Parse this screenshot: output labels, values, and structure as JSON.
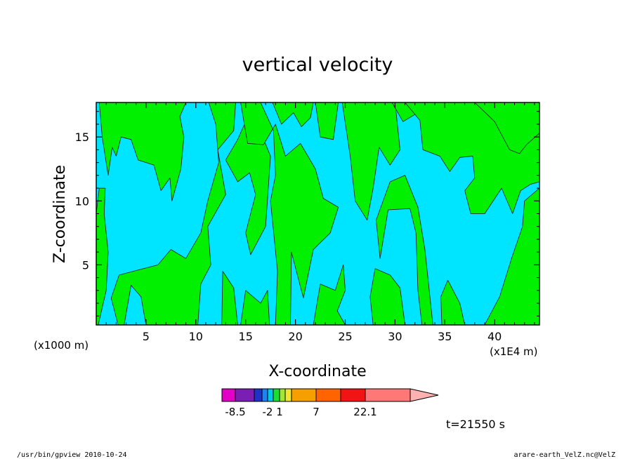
{
  "chart_data": {
    "type": "heatmap",
    "title": "vertical velocity",
    "xlabel": "X-coordinate",
    "ylabel": "Z-coordinate",
    "x_unit_left": "(x1000 m)",
    "x_unit_right": "(x1E4 m)",
    "xlim": [
      0,
      44.5
    ],
    "ylim": [
      0.3,
      17.7
    ],
    "x_ticks": [
      5,
      10,
      15,
      20,
      25,
      30,
      35,
      40
    ],
    "y_ticks": [
      5,
      10,
      15
    ],
    "grid": false,
    "fill_colors": {
      "negative": "#00e5ff",
      "positive": "#00f000"
    },
    "positive_regions": [
      [
        [
          0.2,
          0.3
        ],
        [
          1.0,
          3.0
        ],
        [
          1.2,
          6.0
        ],
        [
          0.8,
          9.0
        ],
        [
          0.9,
          11.0
        ],
        [
          0.3,
          11.0
        ],
        [
          0.0,
          9.0
        ],
        [
          0.0,
          0.3
        ]
      ],
      [
        [
          0.3,
          17.7
        ],
        [
          0.6,
          15.0
        ],
        [
          1.2,
          12.0
        ],
        [
          1.6,
          14.2
        ],
        [
          2.0,
          13.5
        ],
        [
          2.5,
          15.0
        ],
        [
          3.5,
          14.8
        ],
        [
          4.2,
          13.2
        ],
        [
          5.8,
          12.8
        ],
        [
          6.5,
          10.8
        ],
        [
          7.4,
          11.8
        ],
        [
          7.6,
          10.0
        ],
        [
          8.5,
          12.5
        ],
        [
          8.8,
          15.0
        ],
        [
          8.4,
          16.6
        ],
        [
          9.0,
          17.7
        ]
      ],
      [
        [
          11.3,
          17.7
        ],
        [
          12.0,
          16.0
        ],
        [
          12.3,
          13.0
        ],
        [
          11.2,
          10.0
        ],
        [
          10.5,
          7.5
        ],
        [
          9.0,
          5.5
        ],
        [
          7.5,
          6.2
        ],
        [
          6.2,
          5.0
        ],
        [
          4.2,
          4.6
        ],
        [
          2.3,
          4.2
        ],
        [
          1.5,
          2.4
        ],
        [
          2.2,
          0.3
        ],
        [
          2.8,
          0.3
        ],
        [
          3.5,
          3.4
        ],
        [
          4.5,
          2.5
        ],
        [
          5.0,
          0.3
        ],
        [
          10.2,
          0.3
        ],
        [
          10.5,
          3.5
        ],
        [
          11.5,
          5.0
        ],
        [
          11.2,
          8.0
        ],
        [
          13.0,
          10.5
        ],
        [
          12.2,
          14.0
        ],
        [
          13.8,
          15.5
        ],
        [
          14.0,
          17.7
        ]
      ],
      [
        [
          12.6,
          0.3
        ],
        [
          12.7,
          4.5
        ],
        [
          13.8,
          3.2
        ],
        [
          14.2,
          0.3
        ]
      ],
      [
        [
          14.5,
          0.3
        ],
        [
          15.0,
          3.0
        ],
        [
          16.5,
          2.0
        ],
        [
          17.2,
          3.0
        ],
        [
          17.4,
          0.3
        ]
      ],
      [
        [
          13.0,
          13.2
        ],
        [
          14.2,
          11.5
        ],
        [
          15.4,
          12.2
        ],
        [
          16.0,
          10.5
        ],
        [
          15.0,
          7.5
        ],
        [
          15.5,
          5.8
        ],
        [
          17.0,
          8.0
        ],
        [
          17.5,
          13.5
        ],
        [
          16.5,
          15.4
        ],
        [
          15.0,
          16.2
        ],
        [
          14.2,
          14.8
        ]
      ],
      [
        [
          14.5,
          17.7
        ],
        [
          15.2,
          14.5
        ],
        [
          16.8,
          14.4
        ],
        [
          18.0,
          16.0
        ],
        [
          19.0,
          13.5
        ],
        [
          20.5,
          14.5
        ],
        [
          22.0,
          12.5
        ],
        [
          22.8,
          10.2
        ],
        [
          24.3,
          9.5
        ],
        [
          23.5,
          7.5
        ],
        [
          21.8,
          6.2
        ],
        [
          20.8,
          2.4
        ],
        [
          19.6,
          6.0
        ],
        [
          19.5,
          0.3
        ],
        [
          18.0,
          0.3
        ],
        [
          18.2,
          4.5
        ],
        [
          17.5,
          10.0
        ],
        [
          18.0,
          12.0
        ],
        [
          17.8,
          15.5
        ],
        [
          16.5,
          17.7
        ]
      ],
      [
        [
          17.7,
          17.7
        ],
        [
          18.6,
          16.0
        ],
        [
          19.8,
          16.9
        ],
        [
          20.6,
          15.8
        ],
        [
          21.5,
          16.5
        ],
        [
          21.8,
          17.7
        ]
      ],
      [
        [
          22.0,
          17.7
        ],
        [
          22.5,
          15.0
        ],
        [
          23.8,
          14.8
        ],
        [
          24.3,
          17.7
        ]
      ],
      [
        [
          21.8,
          0.3
        ],
        [
          22.5,
          3.5
        ],
        [
          24.0,
          3.0
        ],
        [
          24.8,
          5.0
        ],
        [
          25.0,
          3.0
        ],
        [
          24.2,
          1.4
        ],
        [
          25.0,
          0.3
        ]
      ],
      [
        [
          24.7,
          17.7
        ],
        [
          25.5,
          13.5
        ],
        [
          26.0,
          10.0
        ],
        [
          27.2,
          8.5
        ],
        [
          27.8,
          11.0
        ],
        [
          28.4,
          14.2
        ],
        [
          29.5,
          12.8
        ],
        [
          30.5,
          14.0
        ],
        [
          30.0,
          17.7
        ]
      ],
      [
        [
          27.8,
          0.3
        ],
        [
          27.5,
          2.5
        ],
        [
          28.0,
          4.7
        ],
        [
          29.5,
          4.2
        ],
        [
          30.5,
          3.2
        ],
        [
          31.0,
          0.3
        ]
      ],
      [
        [
          28.1,
          8.5
        ],
        [
          28.5,
          5.5
        ],
        [
          29.3,
          9.3
        ],
        [
          31.5,
          9.4
        ],
        [
          32.1,
          7.5
        ],
        [
          32.3,
          3.0
        ],
        [
          32.7,
          0.3
        ],
        [
          33.8,
          0.3
        ],
        [
          33.0,
          6.2
        ],
        [
          32.3,
          9.5
        ],
        [
          31.0,
          12.0
        ],
        [
          29.5,
          11.5
        ]
      ],
      [
        [
          29.7,
          17.7
        ],
        [
          30.8,
          16.2
        ],
        [
          32.5,
          17.0
        ],
        [
          32.8,
          17.7
        ]
      ],
      [
        [
          31.0,
          17.7
        ],
        [
          32.5,
          16.3
        ],
        [
          32.8,
          14.0
        ],
        [
          34.5,
          13.5
        ],
        [
          35.5,
          12.3
        ],
        [
          36.5,
          13.4
        ],
        [
          37.8,
          13.5
        ],
        [
          38.0,
          11.8
        ],
        [
          37.0,
          10.8
        ],
        [
          37.6,
          9.0
        ],
        [
          39.0,
          9.0
        ],
        [
          40.7,
          11.0
        ],
        [
          41.8,
          9.0
        ],
        [
          42.6,
          10.8
        ],
        [
          43.6,
          11.3
        ],
        [
          44.5,
          11.5
        ],
        [
          44.5,
          17.7
        ]
      ],
      [
        [
          34.7,
          0.3
        ],
        [
          34.6,
          2.5
        ],
        [
          35.3,
          3.8
        ],
        [
          36.5,
          2.0
        ],
        [
          37.0,
          0.3
        ]
      ],
      [
        [
          39.0,
          0.3
        ],
        [
          40.5,
          2.5
        ],
        [
          41.7,
          5.5
        ],
        [
          42.8,
          8.0
        ],
        [
          43.0,
          10.0
        ],
        [
          44.5,
          11.0
        ],
        [
          44.5,
          0.3
        ]
      ],
      [
        [
          38.0,
          17.7
        ],
        [
          40.0,
          16.2
        ],
        [
          41.5,
          14.0
        ],
        [
          42.5,
          13.7
        ],
        [
          43.2,
          14.4
        ],
        [
          44.5,
          15.3
        ],
        [
          44.5,
          17.7
        ]
      ]
    ],
    "colorbar": {
      "colors": [
        "#e100c8",
        "#7a1eb4",
        "#1e32c8",
        "#1e82f0",
        "#00c8e6",
        "#1edc32",
        "#a0e632",
        "#f0e632",
        "#f5a000",
        "#ff6400",
        "#f01414",
        "#ff7878"
      ],
      "extension_color": "#ffb0b0",
      "tick_labels": [
        "-8.5",
        "-2",
        "1",
        "7",
        "22.1"
      ]
    },
    "time_label": "t=21550 s"
  },
  "footer": {
    "left": "/usr/bin/gpview  2010-10-24",
    "right": "arare-earth_VelZ.nc@VelZ"
  }
}
